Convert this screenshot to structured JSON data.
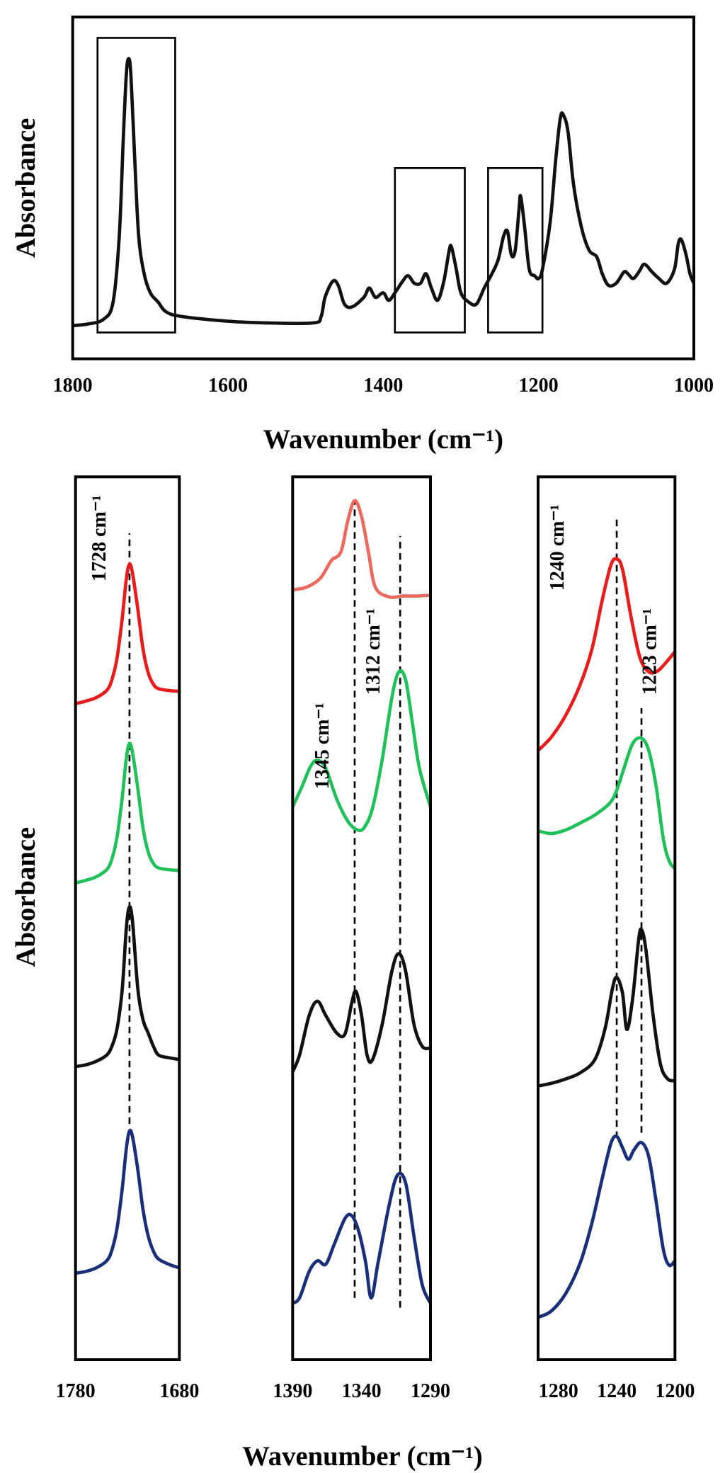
{
  "chart_data": [
    {
      "type": "line",
      "xlabel": "Wavenumber (cm⁻¹)",
      "ylabel": "Absorbance",
      "xlim": [
        1800,
        1000
      ],
      "ylim": [
        0,
        100
      ],
      "xticks": [
        1800,
        1600,
        1400,
        1200,
        1000
      ],
      "series": [
        {
          "color": "#111111",
          "x": [
            1800,
            1780,
            1760,
            1748,
            1740,
            1735,
            1731,
            1728,
            1725,
            1720,
            1715,
            1708,
            1700,
            1690,
            1680,
            1660,
            1600,
            1550,
            1490,
            1480,
            1475,
            1465,
            1458,
            1450,
            1440,
            1425,
            1418,
            1410,
            1400,
            1393,
            1385,
            1375,
            1368,
            1360,
            1352,
            1345,
            1338,
            1330,
            1322,
            1315,
            1312,
            1306,
            1300,
            1290,
            1280,
            1270,
            1260,
            1252,
            1245,
            1240,
            1235,
            1230,
            1225,
            1223,
            1218,
            1212,
            1205,
            1200,
            1195,
            1185,
            1178,
            1172,
            1168,
            1162,
            1155,
            1145,
            1135,
            1125,
            1118,
            1110,
            1100,
            1090,
            1085,
            1078,
            1070,
            1065,
            1060,
            1055,
            1045,
            1035,
            1025,
            1020,
            1016,
            1010,
            1005,
            1000
          ],
          "values": [
            9.7,
            10.2,
            11.6,
            16.6,
            35.9,
            63.5,
            82.9,
            87.8,
            82.9,
            58.0,
            35.9,
            24.9,
            19.3,
            16.6,
            13.8,
            12.4,
            11.0,
            10.5,
            10.5,
            12.4,
            18.0,
            22.7,
            21.5,
            16.0,
            15.2,
            18.0,
            20.7,
            18.0,
            19.3,
            17.1,
            19.3,
            22.7,
            24.3,
            22.1,
            22.1,
            24.9,
            20.7,
            17.1,
            22.7,
            31.8,
            32.6,
            26.2,
            19.3,
            16.6,
            16.0,
            20.7,
            24.9,
            29.0,
            35.9,
            37.3,
            30.4,
            31.8,
            44.2,
            47.5,
            38.7,
            26.2,
            24.3,
            23.5,
            26.2,
            40.1,
            58.0,
            70.4,
            71.3,
            66.3,
            51.1,
            38.7,
            31.8,
            29.8,
            24.9,
            21.5,
            22.1,
            25.4,
            24.9,
            23.5,
            25.7,
            27.6,
            27.1,
            25.7,
            23.5,
            22.1,
            26.2,
            33.7,
            34.8,
            30.4,
            24.9,
            22.1
          ]
        }
      ],
      "highlights": [
        {
          "x": [
            1768,
            1668
          ],
          "y": [
            7.7,
            93.9
          ]
        },
        {
          "x": [
            1385,
            1295
          ],
          "y": [
            7.7,
            55.8
          ]
        },
        {
          "x": [
            1265,
            1195
          ],
          "y": [
            7.7,
            55.8
          ]
        }
      ]
    },
    {
      "type": "line",
      "ylabel": "Absorbance",
      "xlim": [
        1780,
        1680
      ],
      "ylim": [
        0,
        100
      ],
      "xticks": [
        1780,
        1680
      ],
      "series": [
        {
          "color": "#e81c1c",
          "x": [
            1780,
            1770,
            1760,
            1750,
            1745,
            1740,
            1735,
            1731,
            1728,
            1725,
            1720,
            1715,
            1710,
            1705,
            1700,
            1690,
            1680
          ],
          "values": [
            74.3,
            74.6,
            75.0,
            75.8,
            77.0,
            79.5,
            84.0,
            88.5,
            90.1,
            89.0,
            85.0,
            80.5,
            77.8,
            76.5,
            76.0,
            75.8,
            75.7
          ]
        },
        {
          "color": "#22c05a",
          "x": [
            1780,
            1770,
            1760,
            1750,
            1745,
            1740,
            1735,
            1731,
            1728,
            1725,
            1720,
            1715,
            1710,
            1705,
            1700,
            1690,
            1680
          ],
          "values": [
            54.0,
            54.3,
            54.7,
            55.5,
            56.7,
            59.2,
            63.7,
            68.2,
            69.8,
            68.7,
            64.7,
            60.2,
            57.5,
            56.2,
            55.7,
            55.5,
            55.4
          ]
        },
        {
          "color": "#111111",
          "x": [
            1780,
            1770,
            1760,
            1750,
            1745,
            1740,
            1735,
            1731,
            1728,
            1725,
            1720,
            1715,
            1710,
            1705,
            1700,
            1690,
            1680
          ],
          "values": [
            33.2,
            33.4,
            33.8,
            34.5,
            35.5,
            37.5,
            42.0,
            49.0,
            51.3,
            49.5,
            42.0,
            38.5,
            37.0,
            35.5,
            34.5,
            34.2,
            34.0
          ]
        },
        {
          "color": "#1a2f7a",
          "x": [
            1780,
            1770,
            1760,
            1750,
            1745,
            1740,
            1735,
            1731,
            1728,
            1725,
            1720,
            1715,
            1710,
            1705,
            1700,
            1690,
            1680
          ],
          "values": [
            9.8,
            10.0,
            10.4,
            11.2,
            12.4,
            14.9,
            19.4,
            24.0,
            25.9,
            25.2,
            21.5,
            17.0,
            14.0,
            12.3,
            11.4,
            10.8,
            10.4
          ]
        }
      ],
      "markers": [
        {
          "x": 1728,
          "y": [
            26.7,
            93.6
          ],
          "label": "1728 cm⁻¹"
        }
      ]
    },
    {
      "type": "line",
      "xlabel": "Wavenumber (cm⁻¹)",
      "xlim": [
        1390,
        1290
      ],
      "ylim": [
        0,
        100
      ],
      "xticks": [
        1390,
        1340,
        1290
      ],
      "series": [
        {
          "color": "#ea6a5e",
          "x": [
            1390,
            1380,
            1370,
            1362,
            1355,
            1350,
            1345,
            1340,
            1335,
            1330,
            1320,
            1310,
            1300,
            1290
          ],
          "values": [
            87.2,
            87.5,
            88.5,
            90.5,
            91.5,
            95.0,
            97.3,
            95.5,
            91.5,
            87.5,
            86.4,
            86.5,
            86.5,
            86.6
          ]
        },
        {
          "color": "#22c05a",
          "x": [
            1390,
            1383,
            1377,
            1372,
            1366,
            1358,
            1350,
            1343,
            1338,
            1332,
            1325,
            1318,
            1313,
            1308,
            1303,
            1298,
            1290
          ],
          "values": [
            62.6,
            65.0,
            67.2,
            67.9,
            67.0,
            63.5,
            61.0,
            60.0,
            60.3,
            62.5,
            68.0,
            75.0,
            77.9,
            77.0,
            72.0,
            67.0,
            62.6
          ]
        },
        {
          "color": "#111111",
          "x": [
            1390,
            1385,
            1378,
            1372,
            1366,
            1358,
            1352,
            1347,
            1344,
            1340,
            1336,
            1332,
            1325,
            1318,
            1313,
            1308,
            1302,
            1296,
            1290
          ],
          "values": [
            32.6,
            34.5,
            39.0,
            40.6,
            39.0,
            37.0,
            36.9,
            40.5,
            41.7,
            39.0,
            34.5,
            34.0,
            38.0,
            44.0,
            46.0,
            44.0,
            38.0,
            35.5,
            35.3
          ]
        },
        {
          "color": "#1a2f7a",
          "x": [
            1390,
            1385,
            1378,
            1372,
            1366,
            1360,
            1352,
            1347,
            1342,
            1337,
            1333,
            1328,
            1320,
            1314,
            1308,
            1302,
            1296,
            1290
          ],
          "values": [
            6.4,
            7.0,
            10.0,
            11.2,
            10.8,
            13.0,
            16.0,
            16.3,
            14.5,
            11.0,
            7.0,
            11.0,
            17.5,
            20.9,
            20.0,
            14.0,
            8.5,
            6.4
          ]
        }
      ],
      "markers": [
        {
          "x": 1345,
          "y": [
            7.0,
            97.3
          ],
          "label": "1345 cm⁻¹"
        },
        {
          "x": 1312,
          "y": [
            5.9,
            93.3
          ],
          "label": "1312 cm⁻¹"
        }
      ]
    },
    {
      "type": "line",
      "xlim": [
        1294,
        1200
      ],
      "ylim": [
        0,
        100
      ],
      "xticks": [
        1280,
        1240,
        1200
      ],
      "series": [
        {
          "color": "#e81c1c",
          "x": [
            1294,
            1285,
            1275,
            1265,
            1257,
            1250,
            1244,
            1240,
            1236,
            1230,
            1224,
            1218,
            1212,
            1206,
            1200
          ],
          "values": [
            69.0,
            70.5,
            73.0,
            76.5,
            80.5,
            86.0,
            90.0,
            90.7,
            89.5,
            84.0,
            79.5,
            77.9,
            78.0,
            79.0,
            80.2
          ]
        },
        {
          "color": "#22c05a",
          "x": [
            1294,
            1285,
            1275,
            1265,
            1255,
            1245,
            1240,
            1235,
            1229,
            1223,
            1218,
            1213,
            1208,
            1204,
            1200
          ],
          "values": [
            59.9,
            59.6,
            60.0,
            60.8,
            61.7,
            63.0,
            64.5,
            67.0,
            69.8,
            70.4,
            69.0,
            65.0,
            59.0,
            56.5,
            55.6
          ]
        },
        {
          "color": "#111111",
          "x": [
            1294,
            1285,
            1275,
            1265,
            1255,
            1248,
            1243,
            1240,
            1236,
            1233,
            1229,
            1225,
            1223,
            1220,
            1215,
            1210,
            1205,
            1200
          ],
          "values": [
            31.0,
            31.3,
            31.8,
            32.5,
            34.0,
            37.5,
            42.0,
            43.3,
            41.5,
            37.4,
            41.0,
            47.5,
            48.7,
            46.5,
            39.0,
            33.5,
            31.8,
            31.6
          ]
        },
        {
          "color": "#1a2f7a",
          "x": [
            1294,
            1285,
            1275,
            1265,
            1257,
            1250,
            1244,
            1240,
            1236,
            1232,
            1228,
            1223,
            1218,
            1213,
            1208,
            1204,
            1200
          ],
          "values": [
            4.8,
            5.5,
            7.5,
            11.0,
            15.5,
            20.5,
            24.5,
            25.3,
            24.0,
            22.7,
            23.8,
            24.6,
            23.0,
            18.0,
            12.5,
            10.7,
            11.2
          ]
        }
      ],
      "markers": [
        {
          "x": 1240,
          "y": [
            25.1,
            95.4
          ],
          "label": "1240 cm⁻¹"
        },
        {
          "x": 1223,
          "y": [
            25.7,
            73.8
          ],
          "label": "1223 cm⁻¹"
        }
      ]
    }
  ]
}
